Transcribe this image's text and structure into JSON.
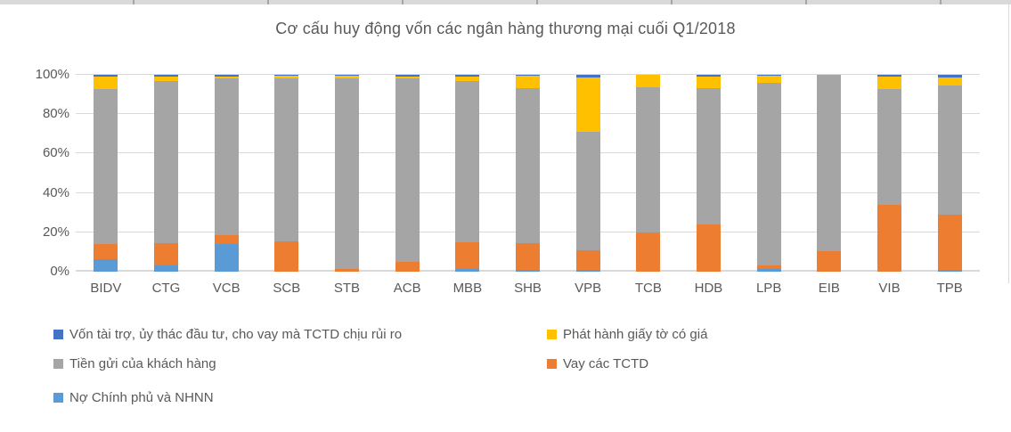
{
  "window": {
    "background": "#ffffff",
    "border_color": "#d9d9d9",
    "text_color": "#595959",
    "grid_color": "#d9d9d9"
  },
  "chart_data": {
    "type": "bar",
    "subtype": "stacked-100-percent",
    "title": "Cơ cấu huy động vốn các ngân hàng thương mại cuối Q1/2018",
    "xlabel": "",
    "ylabel": "",
    "ylim": [
      0,
      100
    ],
    "grid": "horizontal",
    "legend_position": "bottom",
    "categories": [
      "BIDV",
      "CTG",
      "VCB",
      "SCB",
      "STB",
      "ACB",
      "MBB",
      "SHB",
      "VPB",
      "TCB",
      "HDB",
      "LPB",
      "EIB",
      "VIB",
      "TPB"
    ],
    "y_ticks": [
      "0%",
      "20%",
      "40%",
      "60%",
      "80%",
      "100%"
    ],
    "series": [
      {
        "key": "no-chinh-phu-va-nhnn",
        "name": "Nợ Chính phủ và NHNN",
        "color": "#5B9BD5",
        "values": [
          6.5,
          3,
          14,
          0,
          0,
          0,
          1.5,
          1,
          1,
          0,
          0,
          1.5,
          0,
          0,
          1
        ]
      },
      {
        "key": "vay-cac-tctd",
        "name": "Vay các TCTD",
        "color": "#ED7D31",
        "values": [
          7.5,
          11.5,
          4.5,
          15.5,
          1.5,
          5,
          13.5,
          13.5,
          10,
          20,
          24,
          1.5,
          10.5,
          34,
          28
        ]
      },
      {
        "key": "tien-gui-cua-khach-hang",
        "name": "Tiền gửi của khách hàng",
        "color": "#A5A5A5",
        "values": [
          79,
          82.5,
          79.5,
          82.5,
          96.5,
          93,
          82,
          78.5,
          60,
          73.5,
          69,
          93,
          89.5,
          59,
          65.5
        ]
      },
      {
        "key": "phat-hanh-giay-to-co-gia",
        "name": "Phát hành giấy tờ có giá",
        "color": "#FFC000",
        "values": [
          6,
          2,
          1.2,
          1.5,
          1.5,
          1.2,
          2,
          6.5,
          27.5,
          6.5,
          6,
          3.5,
          0,
          6,
          4
        ]
      },
      {
        "key": "von-tai-tro-uy-thac",
        "name": "Vốn tài trợ, ủy thác đầu tư, cho vay mà TCTD chịu rủi ro",
        "color": "#4472C4",
        "values": [
          1,
          1,
          0.8,
          0.5,
          0.5,
          0.8,
          1,
          0.5,
          1.5,
          0,
          1,
          0.5,
          0,
          1,
          1.5
        ]
      }
    ]
  },
  "legend": {
    "items": [
      {
        "label": "Vốn tài trợ, ủy thác đầu tư, cho vay mà TCTD chịu rủi ro",
        "color": "#4472C4"
      },
      {
        "label": "Phát hành giấy tờ có giá",
        "color": "#FFC000"
      },
      {
        "label": "Tiền gửi của khách hàng",
        "color": "#A5A5A5"
      },
      {
        "label": "Vay các TCTD",
        "color": "#ED7D31"
      },
      {
        "label": "Nợ Chính phủ và NHNN",
        "color": "#5B9BD5"
      }
    ]
  }
}
